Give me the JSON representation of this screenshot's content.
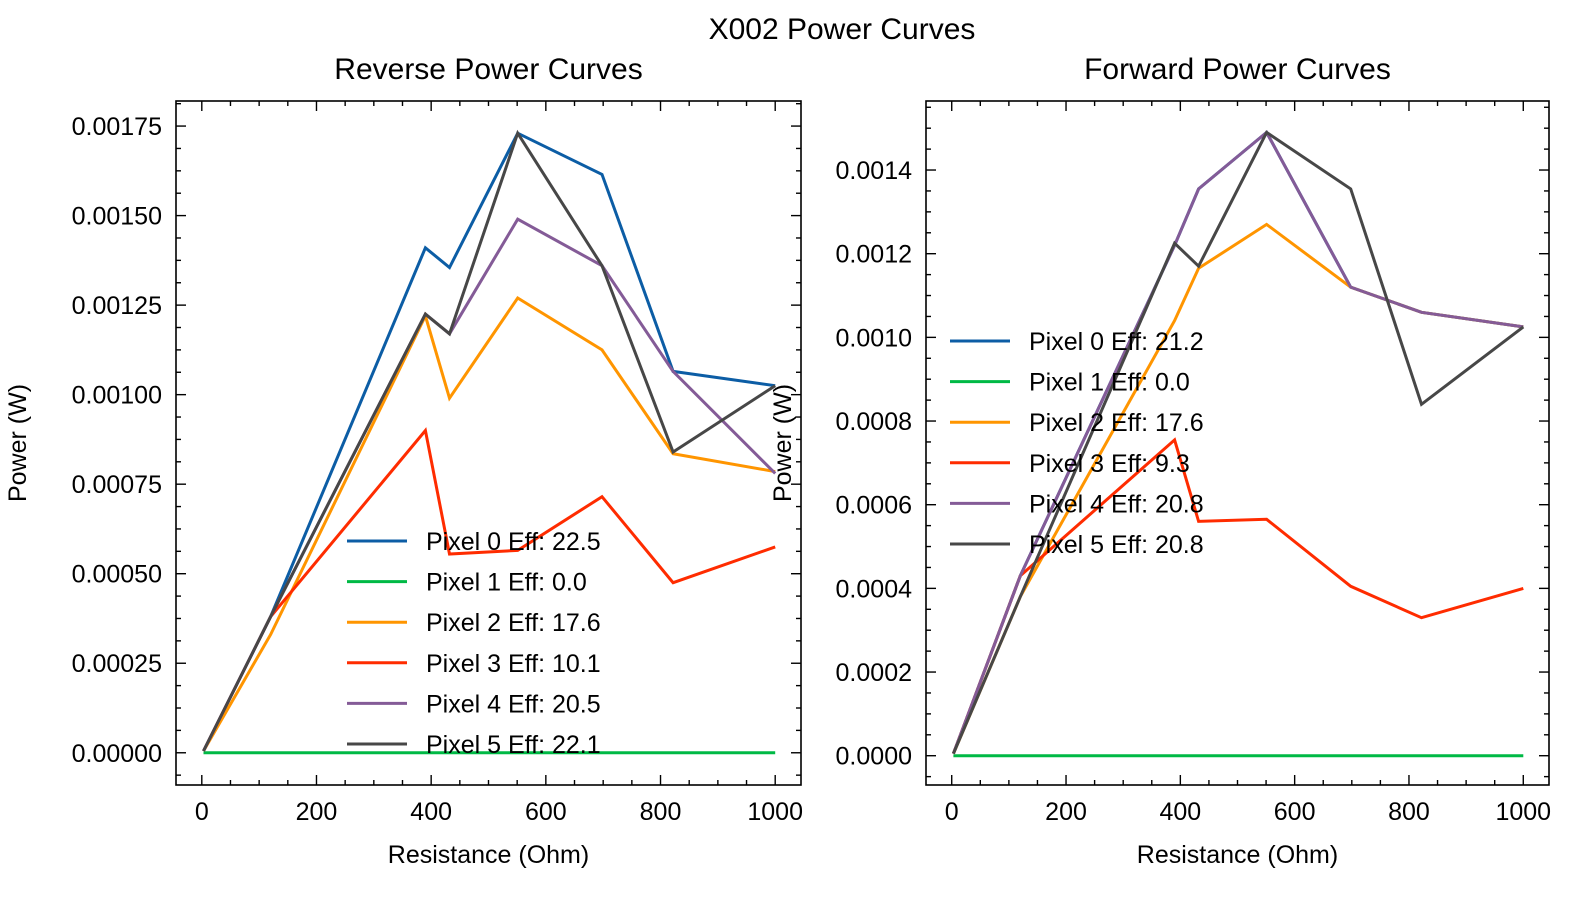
{
  "figure": {
    "suptitle": "X002 Power Curves"
  },
  "colors": {
    "axis": "#000000",
    "background": "#ffffff"
  },
  "chart_data": [
    {
      "type": "line",
      "title": "Reverse Power Curves",
      "xlabel": "Resistance (Ohm)",
      "ylabel": "Power (W)",
      "xlim": [
        -45,
        1045
      ],
      "ylim": [
        -9e-05,
        0.00182
      ],
      "xticks": [
        0,
        200,
        400,
        600,
        800,
        1000
      ],
      "yticks": [
        0,
        0.00025,
        0.0005,
        0.00075,
        0.001,
        0.00125,
        0.0015,
        0.00175
      ],
      "yticklabels": [
        "0.00000",
        "0.00025",
        "0.00050",
        "0.00075",
        "0.00100",
        "0.00125",
        "0.00150",
        "0.00175"
      ],
      "grid": false,
      "legend_position": "lower-center",
      "series": [
        {
          "name": "Pixel 0 Eff: 22.5",
          "color": "#0C5DA5",
          "x": [
            3,
            120,
            390,
            432,
            551,
            698,
            822,
            1000
          ],
          "y": [
            5e-06,
            0.00038,
            0.00141,
            0.001355,
            0.00173,
            0.001615,
            0.001065,
            0.001025
          ]
        },
        {
          "name": "Pixel 1 Eff: 0.0",
          "color": "#00B945",
          "x": [
            3,
            120,
            390,
            432,
            551,
            698,
            822,
            1000
          ],
          "y": [
            0,
            0,
            0,
            0,
            0,
            0,
            0,
            0
          ]
        },
        {
          "name": "Pixel 2 Eff: 17.6",
          "color": "#FF9500",
          "x": [
            3,
            120,
            390,
            432,
            551,
            698,
            822,
            1000
          ],
          "y": [
            5e-06,
            0.00033,
            0.00122,
            0.00099,
            0.00127,
            0.001125,
            0.000835,
            0.000785
          ]
        },
        {
          "name": "Pixel 3 Eff: 10.1",
          "color": "#FF2C00",
          "x": [
            3,
            120,
            390,
            432,
            551,
            698,
            822,
            1000
          ],
          "y": [
            5e-06,
            0.00038,
            0.0009,
            0.000555,
            0.000565,
            0.000715,
            0.000475,
            0.000575
          ]
        },
        {
          "name": "Pixel 4 Eff: 20.5",
          "color": "#845B97",
          "x": [
            3,
            120,
            390,
            432,
            551,
            698,
            822,
            1000
          ],
          "y": [
            5e-06,
            0.00038,
            0.001225,
            0.00117,
            0.00149,
            0.00136,
            0.001065,
            0.00078
          ]
        },
        {
          "name": "Pixel 5 Eff: 22.1",
          "color": "#474747",
          "x": [
            3,
            120,
            390,
            432,
            551,
            698,
            822,
            1000
          ],
          "y": [
            5e-06,
            0.00038,
            0.001225,
            0.00117,
            0.00173,
            0.00136,
            0.00084,
            0.001025
          ]
        }
      ]
    },
    {
      "type": "line",
      "title": "Forward Power Curves",
      "xlabel": "Resistance (Ohm)",
      "ylabel": "Power (W)",
      "xlim": [
        -45,
        1045
      ],
      "ylim": [
        -7e-05,
        0.001565
      ],
      "xticks": [
        0,
        200,
        400,
        600,
        800,
        1000
      ],
      "yticks": [
        0,
        0.0002,
        0.0004,
        0.0006,
        0.0008,
        0.001,
        0.0012,
        0.0014
      ],
      "yticklabels": [
        "0.0000",
        "0.0002",
        "0.0004",
        "0.0006",
        "0.0008",
        "0.0010",
        "0.0012",
        "0.0014"
      ],
      "grid": false,
      "legend_position": "center-left",
      "series": [
        {
          "name": "Pixel 0 Eff: 21.2",
          "color": "#0C5DA5",
          "x": [
            3,
            120,
            390,
            432,
            551,
            698,
            822,
            1000
          ],
          "y": [
            5e-06,
            0.00043,
            0.00122,
            0.001355,
            0.00149,
            0.00112,
            0.00106,
            0.001025
          ]
        },
        {
          "name": "Pixel 1 Eff: 0.0",
          "color": "#00B945",
          "x": [
            3,
            120,
            390,
            432,
            551,
            698,
            822,
            1000
          ],
          "y": [
            0,
            0,
            0,
            0,
            0,
            0,
            0,
            0
          ]
        },
        {
          "name": "Pixel 2 Eff: 17.6",
          "color": "#FF9500",
          "x": [
            3,
            120,
            390,
            432,
            551,
            698,
            822,
            1000
          ],
          "y": [
            5e-06,
            0.00038,
            0.00104,
            0.001165,
            0.00127,
            0.00112,
            0.00106,
            0.001025
          ]
        },
        {
          "name": "Pixel 3 Eff: 9.3",
          "color": "#FF2C00",
          "x": [
            3,
            120,
            390,
            432,
            551,
            698,
            822,
            1000
          ],
          "y": [
            5e-06,
            0.00043,
            0.000755,
            0.00056,
            0.000565,
            0.000405,
            0.00033,
            0.0004
          ]
        },
        {
          "name": "Pixel 4 Eff: 20.8",
          "color": "#845B97",
          "x": [
            3,
            120,
            390,
            432,
            551,
            698,
            822,
            1000
          ],
          "y": [
            5e-06,
            0.00043,
            0.00122,
            0.001355,
            0.00149,
            0.00112,
            0.00106,
            0.001025
          ]
        },
        {
          "name": "Pixel 5 Eff: 20.8",
          "color": "#474747",
          "x": [
            3,
            120,
            390,
            432,
            551,
            698,
            822,
            1000
          ],
          "y": [
            5e-06,
            0.00038,
            0.001225,
            0.00117,
            0.00149,
            0.001355,
            0.00084,
            0.001025
          ]
        }
      ]
    }
  ]
}
